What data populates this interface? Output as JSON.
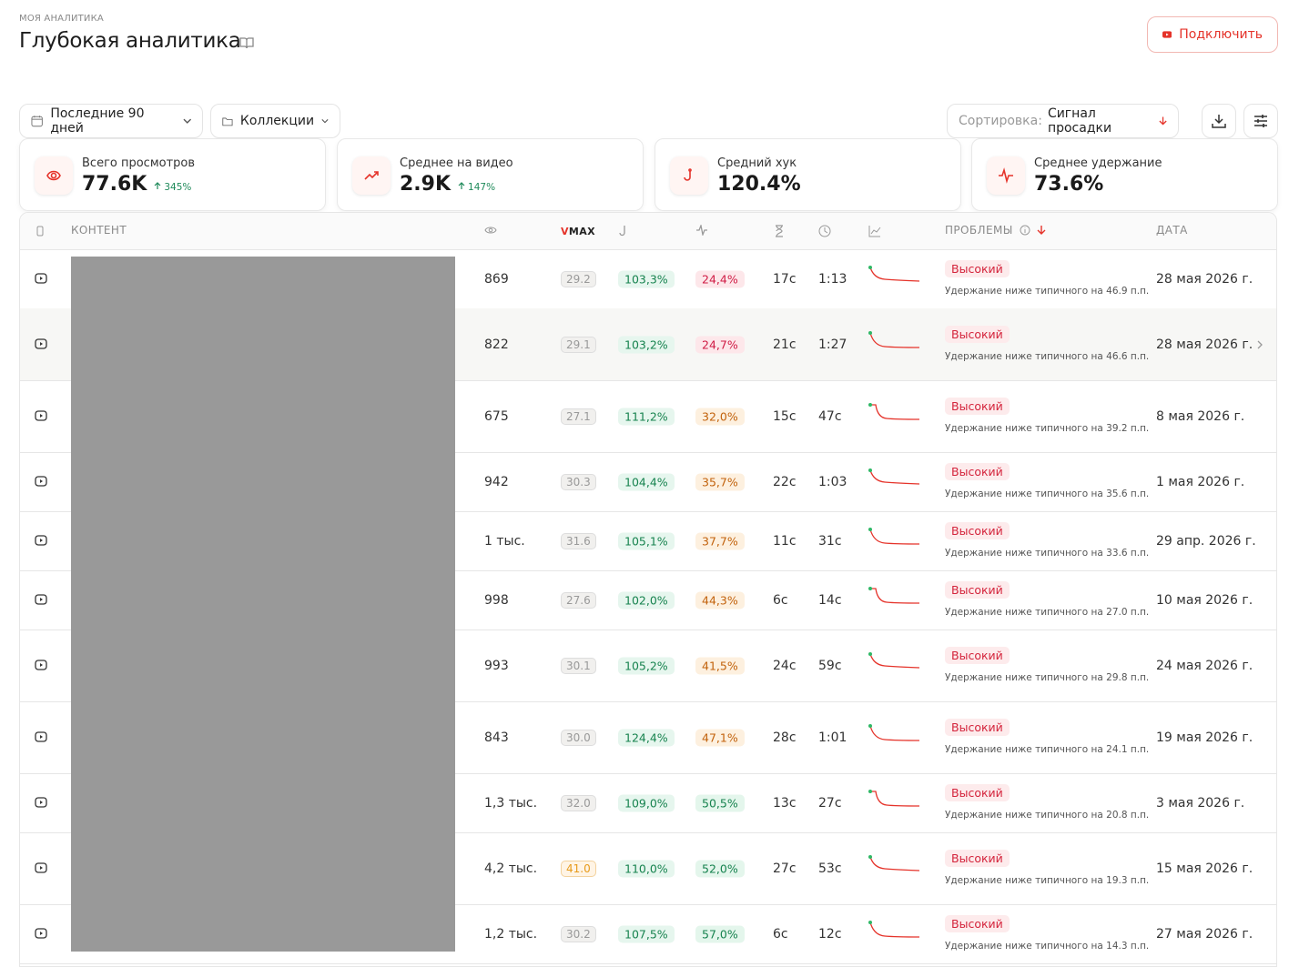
{
  "header": {
    "eyebrow": "МОЯ АНАЛИТИКА",
    "title": "Глубокая аналитика",
    "connect": "Подключить"
  },
  "filters": {
    "period": "Последние 90 дней",
    "collections": "Коллекции",
    "sort_label": "Сортировка:",
    "sort_value": "Сигнал просадки"
  },
  "stats": [
    {
      "label": "Всего просмотров",
      "value": "77.6K",
      "delta": "345%"
    },
    {
      "label": "Среднее на видео",
      "value": "2.9K",
      "delta": "147%"
    },
    {
      "label": "Средний хук",
      "value": "120.4%"
    },
    {
      "label": "Среднее удержание",
      "value": "73.6%"
    }
  ],
  "table": {
    "columns": {
      "content": "КОНТЕНТ",
      "vmax": "VMAX",
      "problems": "ПРОБЛЕМЫ",
      "date": "ДАТА"
    },
    "rows": [
      {
        "views": "869",
        "vmax": "29.2",
        "vmax_tone": "gray",
        "hook": "103,3%",
        "retention": "24,4%",
        "retention_tone": "red",
        "t1": "17с",
        "t2": "1:13",
        "severity": "Высокий",
        "note": "Удержание ниже типичного на 46.9 п.п.",
        "date": "28 мая 2026 г."
      },
      {
        "views": "822",
        "vmax": "29.1",
        "vmax_tone": "gray",
        "hook": "103,2%",
        "retention": "24,7%",
        "retention_tone": "red",
        "t1": "21с",
        "t2": "1:27",
        "severity": "Высокий",
        "note": "Удержание ниже типичного на 46.6 п.п.",
        "date": "28 мая 2026 г."
      },
      {
        "views": "675",
        "vmax": "27.1",
        "vmax_tone": "gray",
        "hook": "111,2%",
        "retention": "32,0%",
        "retention_tone": "orange",
        "t1": "15с",
        "t2": "47с",
        "severity": "Высокий",
        "note": "Удержание ниже типичного на 39.2 п.п.",
        "date": "8 мая 2026 г."
      },
      {
        "views": "942",
        "vmax": "30.3",
        "vmax_tone": "gray",
        "hook": "104,4%",
        "retention": "35,7%",
        "retention_tone": "orange",
        "t1": "22с",
        "t2": "1:03",
        "severity": "Высокий",
        "note": "Удержание ниже типичного на 35.6 п.п.",
        "date": "1 мая 2026 г."
      },
      {
        "views": "1 тыс.",
        "vmax": "31.6",
        "vmax_tone": "gray",
        "hook": "105,1%",
        "retention": "37,7%",
        "retention_tone": "orange",
        "t1": "11с",
        "t2": "31с",
        "severity": "Высокий",
        "note": "Удержание ниже типичного на 33.6 п.п.",
        "date": "29 апр. 2026 г."
      },
      {
        "views": "998",
        "vmax": "27.6",
        "vmax_tone": "gray",
        "hook": "102,0%",
        "retention": "44,3%",
        "retention_tone": "orange",
        "t1": "6с",
        "t2": "14с",
        "severity": "Высокий",
        "note": "Удержание ниже типичного на 27.0 п.п.",
        "date": "10 мая 2026 г."
      },
      {
        "views": "993",
        "vmax": "30.1",
        "vmax_tone": "gray",
        "hook": "105,2%",
        "retention": "41,5%",
        "retention_tone": "orange",
        "t1": "24с",
        "t2": "59с",
        "severity": "Высокий",
        "note": "Удержание ниже типичного на 29.8 п.п.",
        "date": "24 мая 2026 г."
      },
      {
        "views": "843",
        "vmax": "30.0",
        "vmax_tone": "gray",
        "hook": "124,4%",
        "retention": "47,1%",
        "retention_tone": "orange",
        "t1": "28с",
        "t2": "1:01",
        "severity": "Высокий",
        "note": "Удержание ниже типичного на 24.1 п.п.",
        "date": "19 мая 2026 г."
      },
      {
        "views": "1,3 тыс.",
        "vmax": "32.0",
        "vmax_tone": "gray",
        "hook": "109,0%",
        "retention": "50,5%",
        "retention_tone": "green",
        "t1": "13с",
        "t2": "27с",
        "severity": "Высокий",
        "note": "Удержание ниже типичного на 20.8 п.п.",
        "date": "3 мая 2026 г."
      },
      {
        "views": "4,2 тыс.",
        "vmax": "41.0",
        "vmax_tone": "orange",
        "hook": "110,0%",
        "retention": "52,0%",
        "retention_tone": "green",
        "t1": "27с",
        "t2": "53с",
        "severity": "Высокий",
        "note": "Удержание ниже типичного на 19.3 п.п.",
        "date": "15 мая 2026 г."
      },
      {
        "views": "1,2 тыс.",
        "vmax": "30.2",
        "vmax_tone": "gray",
        "hook": "107,5%",
        "retention": "57,0%",
        "retention_tone": "green",
        "t1": "6с",
        "t2": "12с",
        "severity": "Высокий",
        "note": "Удержание ниже типичного на 14.3 п.п.",
        "date": "27 мая 2026 г."
      }
    ]
  }
}
